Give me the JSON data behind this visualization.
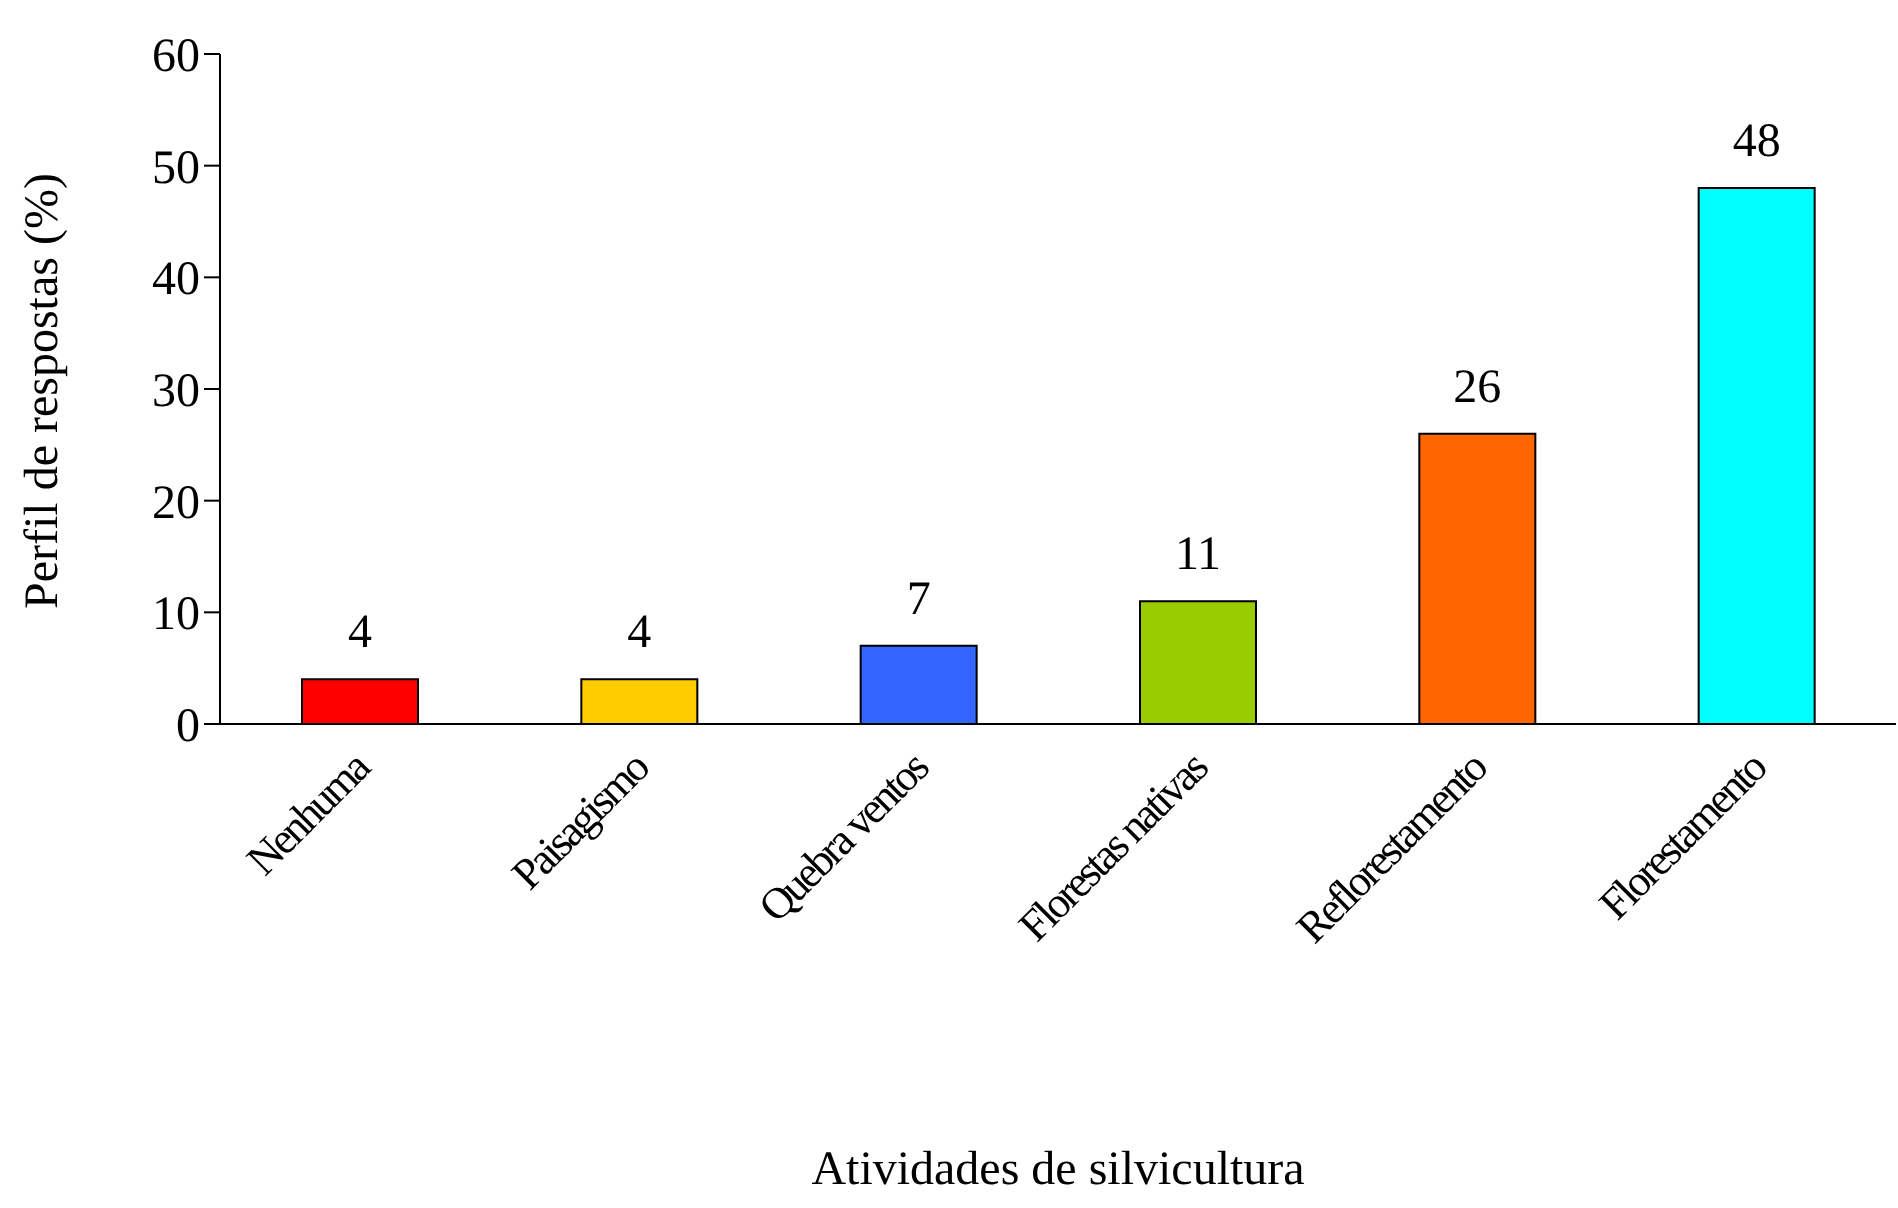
{
  "chart_data": {
    "type": "bar",
    "xlabel": "Atividades de silvicultura",
    "ylabel": "Perfil de respostas (%)",
    "categories": [
      "Nenhuma",
      "Paisagismo",
      "Quebra ventos",
      "Florestas nativas",
      "Reflorestamento",
      "Florestamento"
    ],
    "values": [
      4,
      4,
      7,
      11,
      26,
      48
    ],
    "colors": [
      "#ff0000",
      "#ffcc00",
      "#3366ff",
      "#99cc00",
      "#ff6600",
      "#00ffff"
    ],
    "ylim": [
      0,
      60
    ],
    "yticks": [
      0,
      10,
      20,
      30,
      40,
      50,
      60
    ],
    "grid": false,
    "legend": false,
    "data_labels": true
  }
}
